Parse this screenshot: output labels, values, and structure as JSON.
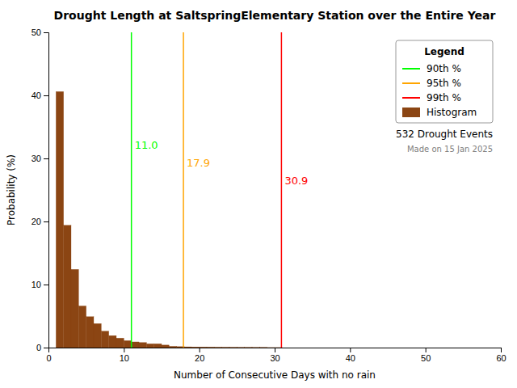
{
  "chart_data": {
    "type": "histogram",
    "title": "Drought Length at SaltspringElementary Station over the Entire Year",
    "x_label": "Number of Consecutive Days with no rain",
    "y_label": "Probability (%)",
    "bins": [
      1,
      2,
      3,
      4,
      5,
      6,
      7,
      8,
      9,
      10,
      11,
      12,
      13,
      14,
      15,
      16,
      17,
      18,
      19,
      20,
      21,
      22,
      23,
      24,
      25,
      26,
      27,
      28,
      29,
      30,
      31
    ],
    "xlim": [
      0,
      60
    ],
    "ylim": [
      0,
      50
    ],
    "xticks": [
      0,
      10,
      20,
      30,
      40,
      50,
      60
    ],
    "yticks": [
      0,
      10,
      20,
      30,
      40,
      50
    ],
    "grid": false,
    "legend": "upper right",
    "legend_title": "Legend",
    "annotations": [
      "532 Drought Events",
      "Made on 15 Jan 2025"
    ],
    "series": [
      {
        "name": "90th %",
        "type": "vline",
        "color": "#00ff00",
        "values": [
          11.0
        ],
        "value_labels": [
          "11.0"
        ]
      },
      {
        "name": "95th %",
        "type": "vline",
        "color": "#ffa500",
        "values": [
          17.9
        ],
        "value_labels": [
          "17.9"
        ]
      },
      {
        "name": "99th %",
        "type": "vline",
        "color": "#ff0000",
        "values": [
          30.9
        ],
        "value_labels": [
          "30.9"
        ]
      },
      {
        "name": "Histogram",
        "type": "bar",
        "color": "#8B4513",
        "values": [
          40.6,
          19.4,
          12.4,
          6.6,
          4.9,
          3.8,
          2.6,
          1.9,
          1.5,
          1.1,
          0.9,
          0.8,
          0.6,
          0.6,
          0.4,
          0.2,
          0.15,
          0.12,
          0.1,
          0.09,
          0.08,
          0.06,
          0.05,
          0.04,
          0.03,
          0.03,
          0.02,
          0.02,
          0.01,
          0.01
        ]
      }
    ]
  }
}
